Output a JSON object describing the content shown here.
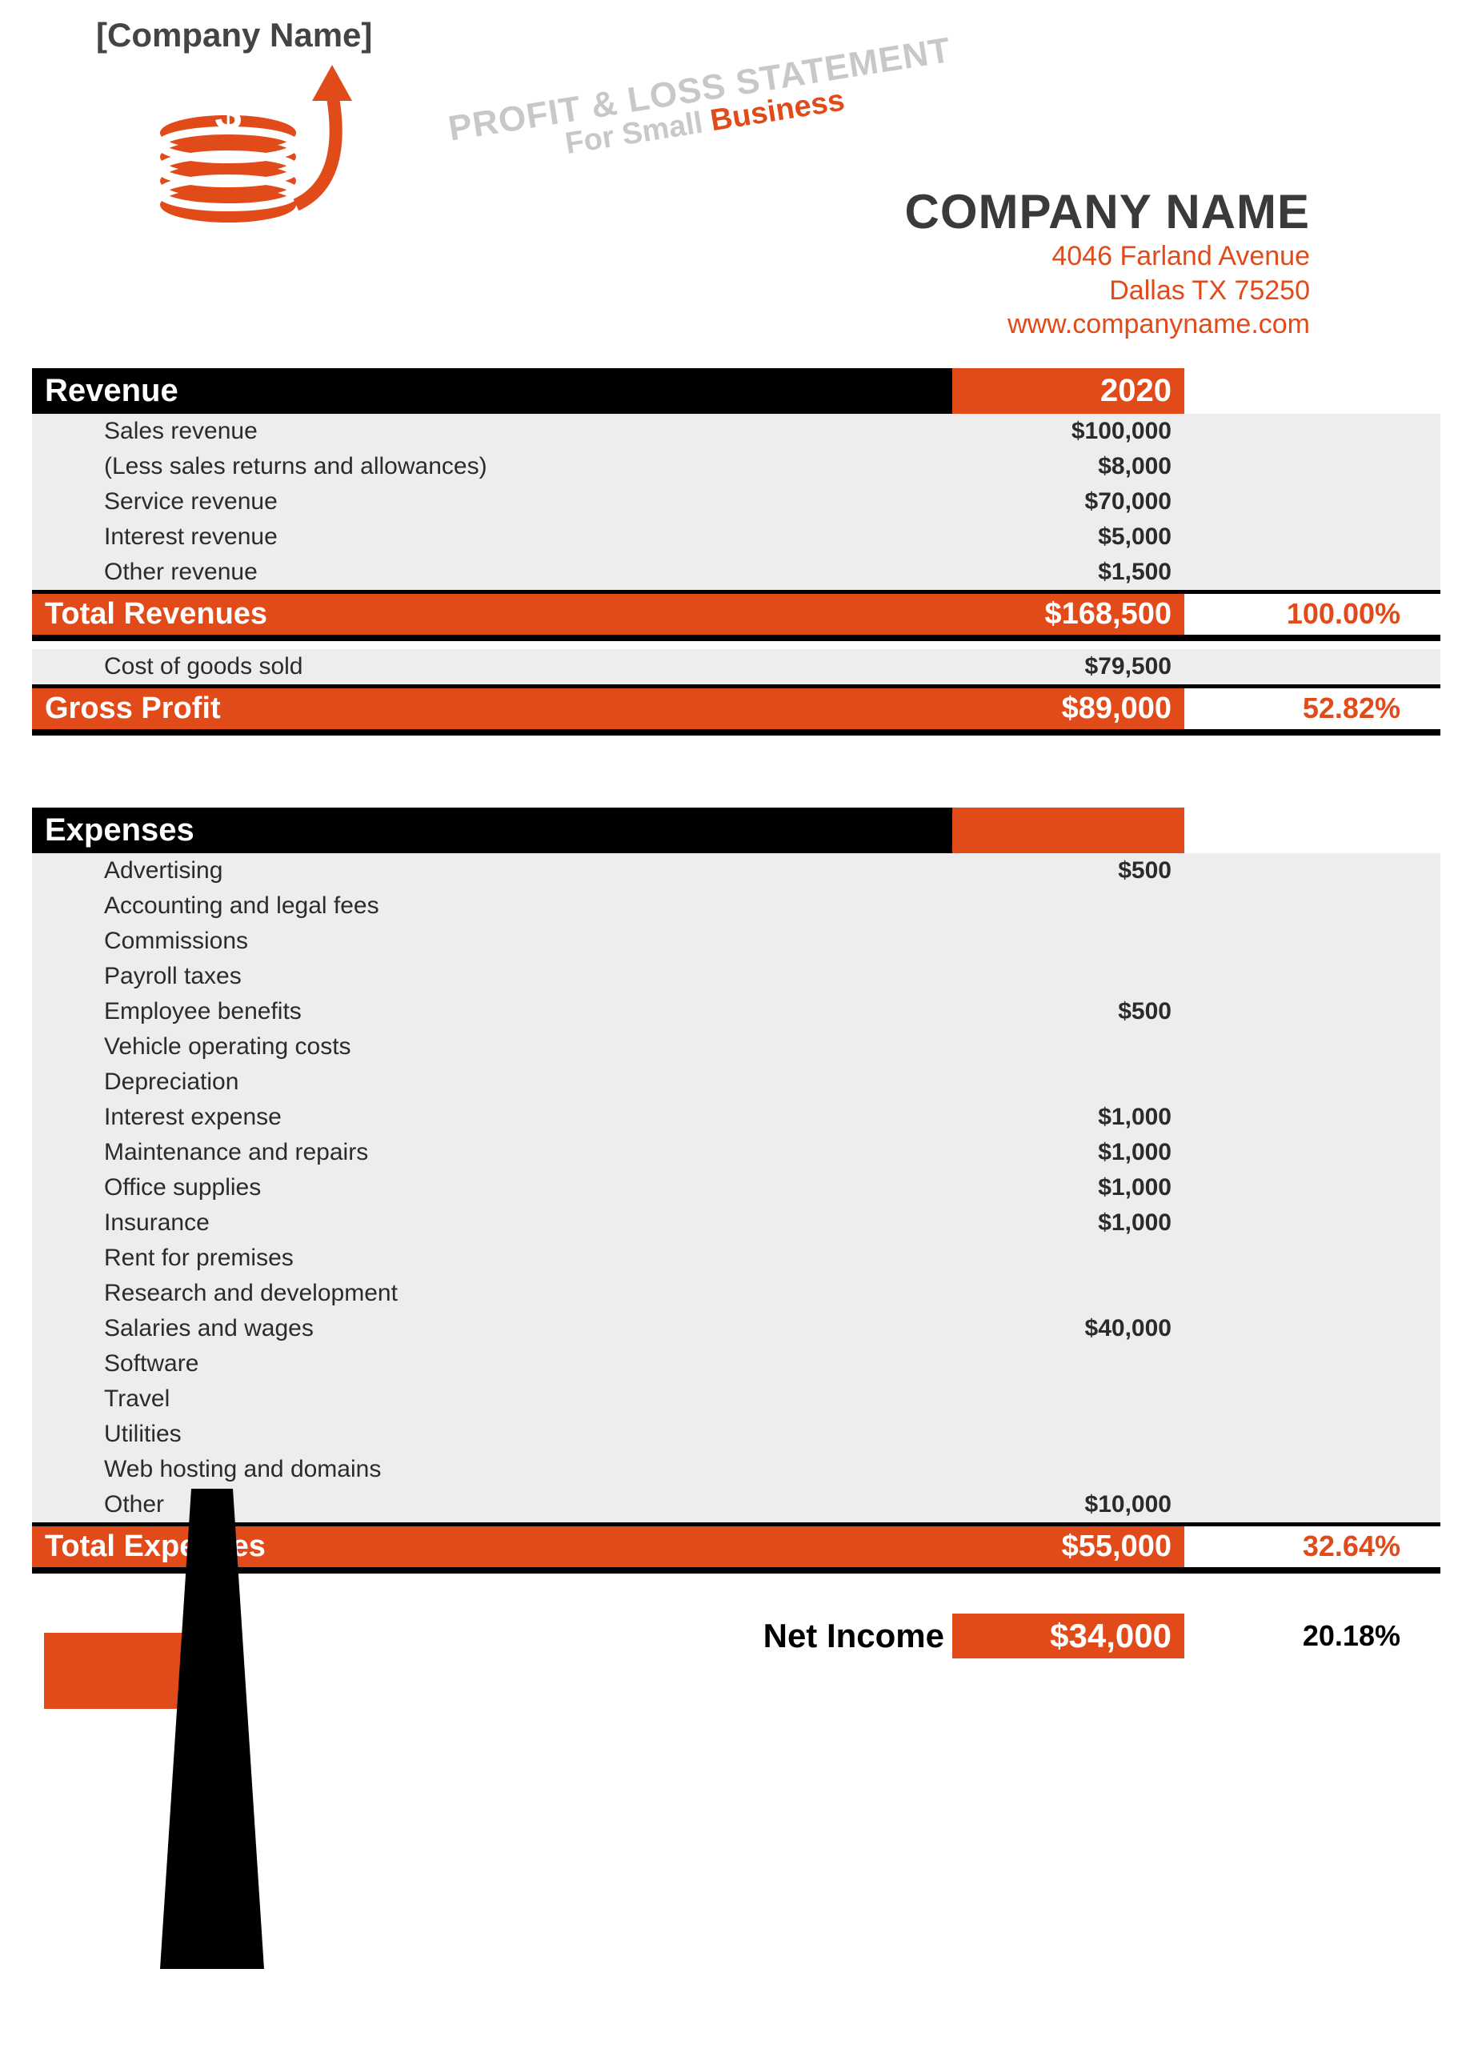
{
  "colors": {
    "accent": "#e14b1a",
    "black": "#000000",
    "row_bg": "#ededed",
    "text": "#2b2b2b",
    "white": "#ffffff",
    "grey_text": "#c8c8c8"
  },
  "header": {
    "placeholder": "[Company Name]",
    "slant_line1": "PROFIT & LOSS STATEMENT",
    "slant_line2a": "For Small ",
    "slant_line2b": "Business",
    "company_name": "COMPANY NAME",
    "address1": "4046  Farland Avenue",
    "address2": "Dallas TX 75250",
    "website": "www.companyname.com"
  },
  "revenue": {
    "title": "Revenue",
    "year": "2020",
    "items": [
      {
        "label": "Sales revenue",
        "value": "$100,000"
      },
      {
        "label": "(Less sales returns and allowances)",
        "value": "$8,000"
      },
      {
        "label": "Service revenue",
        "value": "$70,000"
      },
      {
        "label": "Interest revenue",
        "value": "$5,000"
      },
      {
        "label": "Other revenue",
        "value": "$1,500"
      }
    ],
    "total_label": "Total Revenues",
    "total_value": "$168,500",
    "total_pct": "100.00%"
  },
  "cogs": {
    "label": "Cost of goods sold",
    "value": "$79,500"
  },
  "gross_profit": {
    "label": "Gross Profit",
    "value": "$89,000",
    "pct": "52.82%"
  },
  "expenses": {
    "title": "Expenses",
    "items": [
      {
        "label": "Advertising",
        "value": "$500"
      },
      {
        "label": "Accounting and legal fees",
        "value": ""
      },
      {
        "label": "Commissions",
        "value": ""
      },
      {
        "label": "Payroll taxes",
        "value": ""
      },
      {
        "label": "Employee benefits",
        "value": "$500"
      },
      {
        "label": "Vehicle operating costs",
        "value": ""
      },
      {
        "label": "Depreciation",
        "value": ""
      },
      {
        "label": "Interest expense",
        "value": "$1,000"
      },
      {
        "label": "Maintenance and repairs",
        "value": "$1,000"
      },
      {
        "label": "Office supplies",
        "value": "$1,000"
      },
      {
        "label": "Insurance",
        "value": "$1,000"
      },
      {
        "label": "Rent for premises",
        "value": ""
      },
      {
        "label": "Research and development",
        "value": ""
      },
      {
        "label": "Salaries and wages",
        "value": "$40,000"
      },
      {
        "label": "Software",
        "value": ""
      },
      {
        "label": "Travel",
        "value": ""
      },
      {
        "label": "Utilities",
        "value": ""
      },
      {
        "label": "Web hosting and domains",
        "value": ""
      },
      {
        "label": "Other",
        "value": "$10,000"
      }
    ],
    "total_label": "Total Expenses",
    "total_value": "$55,000",
    "total_pct": "32.64%"
  },
  "net_income": {
    "label": "Net Income",
    "value": "$34,000",
    "pct": "20.18%"
  }
}
